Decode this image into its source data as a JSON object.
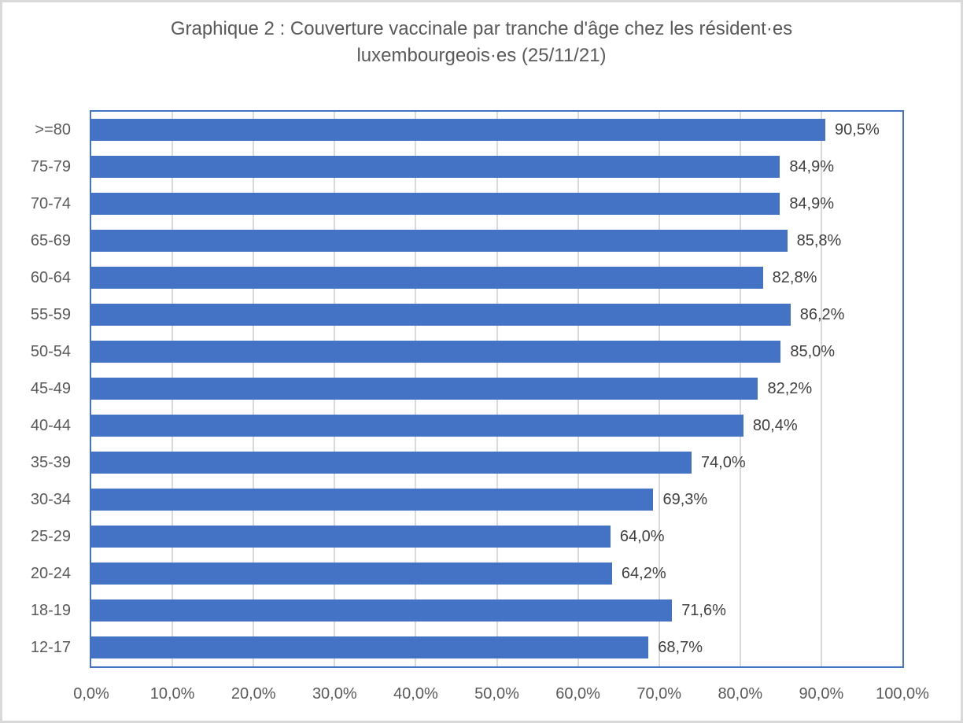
{
  "chart_data": {
    "type": "bar",
    "orientation": "horizontal",
    "title": "Graphique 2 : Couverture vaccinale par tranche d'âge chez les résident·es luxembourgeois·es  (25/11/21)",
    "title_lines": [
      "Graphique 2 : Couverture vaccinale par tranche d'âge chez les résident·es",
      "luxembourgeois·es  (25/11/21)"
    ],
    "xlabel": "",
    "ylabel": "",
    "xlim": [
      0,
      100
    ],
    "grid": true,
    "legend": null,
    "bar_color": "#4472c4",
    "categories": [
      ">=80",
      "75-79",
      "70-74",
      "65-69",
      "60-64",
      "55-59",
      "50-54",
      "45-49",
      "40-44",
      "35-39",
      "30-34",
      "25-29",
      "20-24",
      "18-19",
      "12-17"
    ],
    "values": [
      90.5,
      84.9,
      84.9,
      85.8,
      82.8,
      86.2,
      85.0,
      82.2,
      80.4,
      74.0,
      69.3,
      64.0,
      64.2,
      71.6,
      68.7
    ],
    "value_labels": [
      "90,5%",
      "84,9%",
      "84,9%",
      "85,8%",
      "82,8%",
      "86,2%",
      "85,0%",
      "82,2%",
      "80,4%",
      "74,0%",
      "69,3%",
      "64,0%",
      "64,2%",
      "71,6%",
      "68,7%"
    ],
    "x_ticks": [
      0,
      10,
      20,
      30,
      40,
      50,
      60,
      70,
      80,
      90,
      100
    ],
    "x_tick_labels": [
      "0,0%",
      "10,0%",
      "20,0%",
      "30,0%",
      "40,0%",
      "50,0%",
      "60,0%",
      "70,0%",
      "80,0%",
      "90,0%",
      "100,0%"
    ]
  }
}
